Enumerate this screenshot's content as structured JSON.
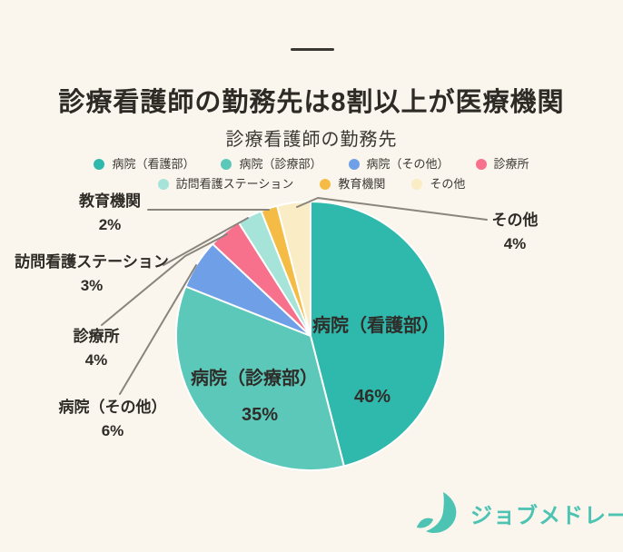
{
  "page": {
    "background_color": "#FAF6ED",
    "text_color": "#2E2B27"
  },
  "header": {
    "title": "診療看護師の勤務先は8割以上が医療機関"
  },
  "chart_data": {
    "type": "pie",
    "title": "診療看護師の勤務先",
    "unit": "%",
    "legend_position": "top",
    "series": [
      {
        "name": "病院（看護部）",
        "value": 46,
        "pct_label": "46%",
        "color": "#2FB9AC"
      },
      {
        "name": "病院（診療部）",
        "value": 35,
        "pct_label": "35%",
        "color": "#5BC8B9"
      },
      {
        "name": "病院（その他）",
        "value": 6,
        "pct_label": "6%",
        "color": "#6FA0E7"
      },
      {
        "name": "診療所",
        "value": 4,
        "pct_label": "4%",
        "color": "#F8718C"
      },
      {
        "name": "訪問看護ステーション",
        "value": 3,
        "pct_label": "3%",
        "color": "#A6E3D8"
      },
      {
        "name": "教育機関",
        "value": 2,
        "pct_label": "2%",
        "color": "#F5BC45"
      },
      {
        "name": "その他",
        "value": 4,
        "pct_label": "4%",
        "color": "#FAECC5"
      }
    ]
  },
  "footer": {
    "brand": "ジョブメドレー",
    "brand_color": "#4DC3B3"
  }
}
